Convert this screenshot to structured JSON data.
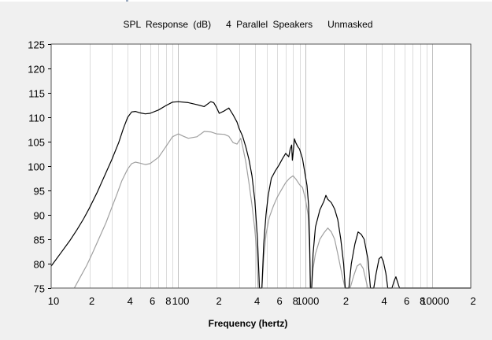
{
  "chart_data": {
    "type": "line",
    "title": "SPL Response (dB)   4 Parallel Speakers   Unmasked",
    "xlabel": "Frequency (hertz)",
    "ylabel": "",
    "xscale": "log",
    "xlim": [
      10,
      20000
    ],
    "ylim": [
      75,
      125
    ],
    "yticks": [
      75,
      80,
      85,
      90,
      95,
      100,
      105,
      110,
      115,
      120,
      125
    ],
    "xtick_labels": [
      {
        "value": 10,
        "label": "10"
      },
      {
        "value": 20,
        "label": "2"
      },
      {
        "value": 40,
        "label": "4"
      },
      {
        "value": 60,
        "label": "6"
      },
      {
        "value": 80,
        "label": "8"
      },
      {
        "value": 100,
        "label": "100"
      },
      {
        "value": 200,
        "label": "2"
      },
      {
        "value": 400,
        "label": "4"
      },
      {
        "value": 600,
        "label": "6"
      },
      {
        "value": 800,
        "label": "8"
      },
      {
        "value": 1000,
        "label": "1000"
      },
      {
        "value": 2000,
        "label": "2"
      },
      {
        "value": 4000,
        "label": "4"
      },
      {
        "value": 6000,
        "label": "6"
      },
      {
        "value": 8000,
        "label": "8"
      },
      {
        "value": 10000,
        "label": "10000"
      },
      {
        "value": 20000,
        "label": "2"
      }
    ],
    "grid": true,
    "series": [
      {
        "color": "#000000",
        "points": [
          [
            10,
            79.5
          ],
          [
            12,
            82.3
          ],
          [
            14,
            84.7
          ],
          [
            16,
            87.0
          ],
          [
            18,
            89.2
          ],
          [
            20,
            91.4
          ],
          [
            23,
            94.6
          ],
          [
            26,
            97.7
          ],
          [
            30,
            101.3
          ],
          [
            34,
            104.8
          ],
          [
            37,
            107.7
          ],
          [
            40,
            110.0
          ],
          [
            43,
            111.1
          ],
          [
            46,
            111.2
          ],
          [
            50,
            110.9
          ],
          [
            55,
            110.7
          ],
          [
            60,
            110.8
          ],
          [
            70,
            111.5
          ],
          [
            80,
            112.4
          ],
          [
            90,
            113.1
          ],
          [
            100,
            113.2
          ],
          [
            120,
            113.0
          ],
          [
            140,
            112.6
          ],
          [
            160,
            112.2
          ],
          [
            180,
            113.2
          ],
          [
            190,
            113.0
          ],
          [
            200,
            112.0
          ],
          [
            210,
            110.8
          ],
          [
            230,
            111.3
          ],
          [
            250,
            111.9
          ],
          [
            270,
            110.5
          ],
          [
            290,
            109.0
          ],
          [
            300,
            107.8
          ],
          [
            320,
            106.2
          ],
          [
            340,
            103.9
          ],
          [
            360,
            101.3
          ],
          [
            380,
            98.0
          ],
          [
            400,
            93.0
          ],
          [
            420,
            85.0
          ],
          [
            435,
            75.0
          ],
          [
            455,
            75.0
          ],
          [
            470,
            84.0
          ],
          [
            490,
            90.0
          ],
          [
            510,
            94.0
          ],
          [
            540,
            97.5
          ],
          [
            580,
            99.0
          ],
          [
            620,
            100.2
          ],
          [
            660,
            101.5
          ],
          [
            700,
            102.6
          ],
          [
            740,
            101.9
          ],
          [
            760,
            103.5
          ],
          [
            780,
            104.3
          ],
          [
            790,
            101.2
          ],
          [
            800,
            102.5
          ],
          [
            820,
            105.6
          ],
          [
            840,
            104.8
          ],
          [
            870,
            104.0
          ],
          [
            900,
            103.5
          ],
          [
            950,
            101.5
          ],
          [
            1000,
            98.0
          ],
          [
            1030,
            96.0
          ],
          [
            1060,
            92.0
          ],
          [
            1080,
            85.0
          ],
          [
            1095,
            75.0
          ],
          [
            1120,
            75.0
          ],
          [
            1150,
            82.0
          ],
          [
            1200,
            87.5
          ],
          [
            1300,
            91.0
          ],
          [
            1400,
            92.8
          ],
          [
            1450,
            94.0
          ],
          [
            1500,
            93.2
          ],
          [
            1600,
            92.5
          ],
          [
            1700,
            91.2
          ],
          [
            1800,
            89.0
          ],
          [
            1900,
            85.0
          ],
          [
            2000,
            80.0
          ],
          [
            2060,
            75.0
          ],
          [
            2200,
            75.0
          ],
          [
            2300,
            80.0
          ],
          [
            2450,
            84.0
          ],
          [
            2600,
            86.5
          ],
          [
            2750,
            86.0
          ],
          [
            2900,
            85.0
          ],
          [
            3100,
            81.0
          ],
          [
            3250,
            75.0
          ],
          [
            3450,
            75.0
          ],
          [
            3600,
            78.0
          ],
          [
            3800,
            81.0
          ],
          [
            3950,
            81.4
          ],
          [
            4100,
            80.5
          ],
          [
            4300,
            78.0
          ],
          [
            4450,
            75.0
          ],
          [
            4800,
            75.0
          ],
          [
            5000,
            76.5
          ],
          [
            5150,
            77.3
          ],
          [
            5350,
            76.0
          ],
          [
            5500,
            75.0
          ],
          [
            20000,
            75.0
          ]
        ]
      },
      {
        "color": "#a0a0a0",
        "points": [
          [
            15.2,
            75.0
          ],
          [
            17,
            77.3
          ],
          [
            19,
            79.6
          ],
          [
            21,
            82.0
          ],
          [
            24,
            85.4
          ],
          [
            27,
            88.4
          ],
          [
            30,
            91.5
          ],
          [
            33,
            94.3
          ],
          [
            36,
            97.0
          ],
          [
            40,
            99.4
          ],
          [
            43,
            100.5
          ],
          [
            46,
            100.8
          ],
          [
            50,
            100.6
          ],
          [
            55,
            100.3
          ],
          [
            60,
            100.5
          ],
          [
            70,
            101.8
          ],
          [
            80,
            104.0
          ],
          [
            90,
            106.0
          ],
          [
            100,
            106.6
          ],
          [
            110,
            106.1
          ],
          [
            120,
            105.7
          ],
          [
            140,
            106.0
          ],
          [
            160,
            107.1
          ],
          [
            180,
            107.0
          ],
          [
            200,
            106.6
          ],
          [
            230,
            106.5
          ],
          [
            250,
            106.1
          ],
          [
            270,
            104.8
          ],
          [
            290,
            104.5
          ],
          [
            310,
            105.7
          ],
          [
            320,
            104.2
          ],
          [
            340,
            100.8
          ],
          [
            360,
            96.5
          ],
          [
            380,
            92.0
          ],
          [
            400,
            87.0
          ],
          [
            415,
            82.0
          ],
          [
            425,
            75.0
          ],
          [
            455,
            75.0
          ],
          [
            470,
            81.0
          ],
          [
            490,
            86.0
          ],
          [
            520,
            89.5
          ],
          [
            560,
            91.8
          ],
          [
            600,
            93.6
          ],
          [
            650,
            95.2
          ],
          [
            700,
            96.6
          ],
          [
            750,
            97.5
          ],
          [
            800,
            98.0
          ],
          [
            850,
            97.2
          ],
          [
            900,
            96.2
          ],
          [
            950,
            95.6
          ],
          [
            1000,
            93.3
          ],
          [
            1050,
            90.0
          ],
          [
            1080,
            82.0
          ],
          [
            1095,
            75.0
          ],
          [
            1120,
            75.0
          ],
          [
            1150,
            79.0
          ],
          [
            1200,
            82.0
          ],
          [
            1300,
            85.0
          ],
          [
            1400,
            86.3
          ],
          [
            1500,
            87.3
          ],
          [
            1600,
            86.5
          ],
          [
            1700,
            85.0
          ],
          [
            1800,
            82.0
          ],
          [
            1950,
            77.5
          ],
          [
            2050,
            75.0
          ],
          [
            2250,
            75.0
          ],
          [
            2400,
            77.5
          ],
          [
            2550,
            79.5
          ],
          [
            2700,
            80.0
          ],
          [
            2850,
            79.0
          ],
          [
            3000,
            76.5
          ],
          [
            3100,
            75.0
          ],
          [
            20000,
            75.0
          ]
        ]
      }
    ]
  }
}
